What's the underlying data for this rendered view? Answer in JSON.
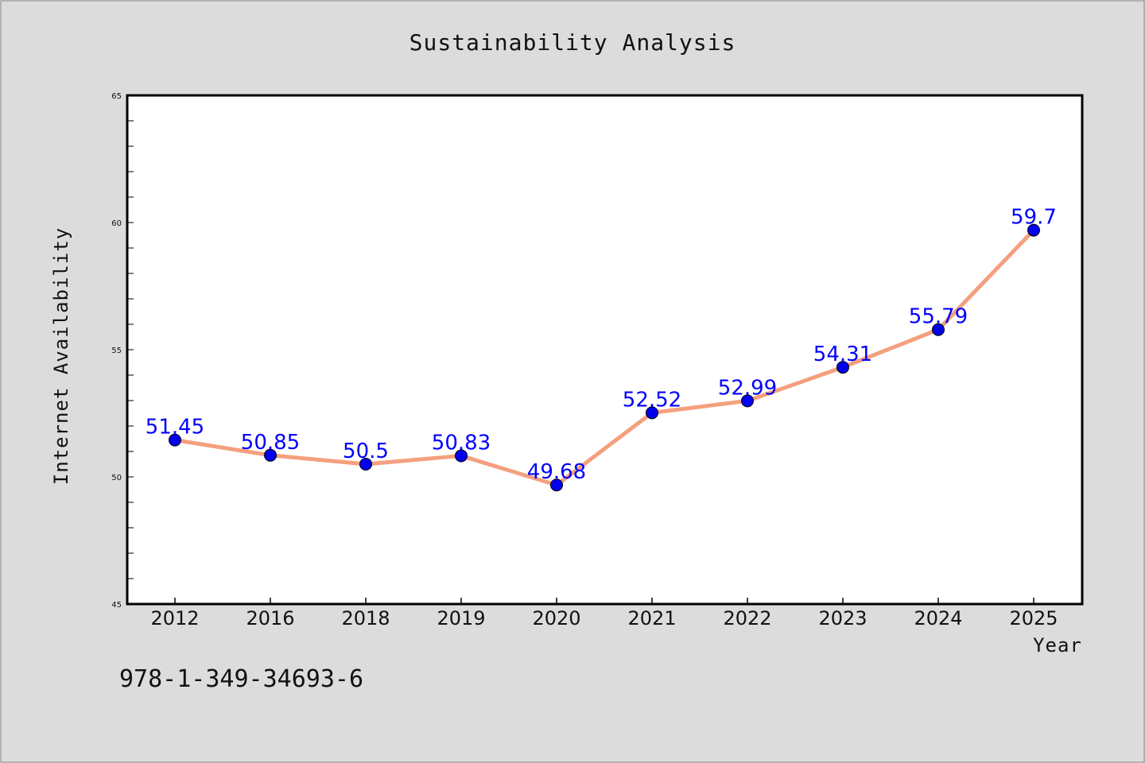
{
  "chart_data": {
    "type": "line",
    "title": "Sustainability Analysis",
    "xlabel": "Year",
    "ylabel": "Internet Availability",
    "categories": [
      "2012",
      "2016",
      "2018",
      "2019",
      "2020",
      "2021",
      "2022",
      "2023",
      "2024",
      "2025"
    ],
    "values": [
      51.45,
      50.85,
      50.5,
      50.83,
      49.68,
      52.52,
      52.99,
      54.31,
      55.79,
      59.7
    ],
    "data_labels": [
      "51.45",
      "50.85",
      "50.5",
      "50.83",
      "49.68",
      "52.52",
      "52.99",
      "54.31",
      "55.79",
      "59.7"
    ],
    "ylim": [
      45,
      65
    ],
    "y_ticks": [
      45,
      50,
      55,
      60,
      65
    ],
    "grid": false,
    "line_color": "#f4a07e",
    "marker_color": "#0000ee",
    "label_color": "#0000ff"
  },
  "footnote": "978-1-349-34693-6"
}
